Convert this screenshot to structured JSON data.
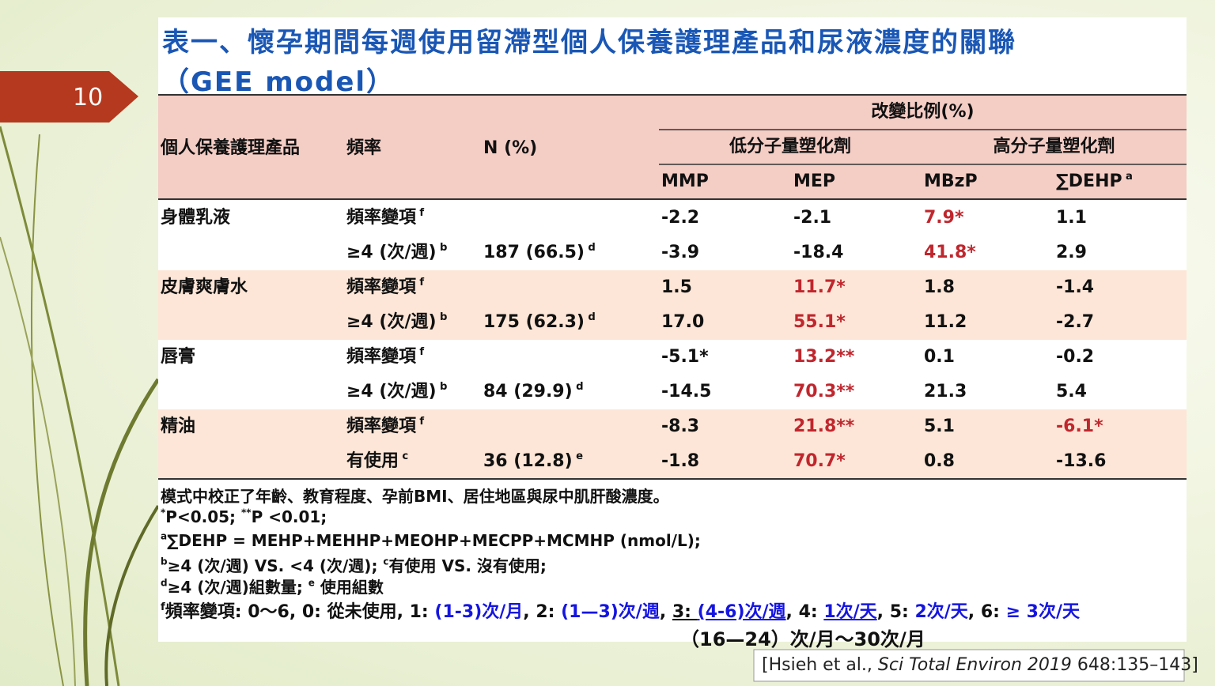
{
  "slide_number": "10",
  "title": [
    "表一、懷孕期間每週使用留滯型個人保養護理產品和尿液濃度的關聯",
    "（GEE model）"
  ],
  "table": {
    "header": {
      "product": "個人保養護理產品",
      "frequency": "頻率",
      "n": "N (%)",
      "change": "改變比例(%)",
      "low_mw": "低分子量塑化劑",
      "high_mw": "高分子量塑化劑",
      "metabolites": [
        {
          "text": "MMP"
        },
        {
          "text": "MEP"
        },
        {
          "text": "MBzP"
        },
        {
          "text": "∑DEHP",
          "sup": "a"
        }
      ]
    },
    "groups": [
      {
        "product": "身體乳液",
        "rows": [
          {
            "frequency": {
              "text": "頻率變項",
              "sup": "f"
            },
            "values": [
              {
                "text": "-2.2"
              },
              {
                "text": "-2.1"
              },
              {
                "text": "7.9*",
                "color": "#c0262d"
              },
              {
                "text": "1.1"
              }
            ]
          },
          {
            "frequency": {
              "text": "≥4 (次/週)",
              "sup": "b"
            },
            "n": {
              "text": "187 (66.5)",
              "sup": "d"
            },
            "values": [
              {
                "text": "-3.9"
              },
              {
                "text": "-18.4"
              },
              {
                "text": "41.8*",
                "color": "#c0262d"
              },
              {
                "text": "2.9"
              }
            ]
          }
        ]
      },
      {
        "product": "皮膚爽膚水",
        "rows": [
          {
            "frequency": {
              "text": "頻率變項",
              "sup": "f"
            },
            "values": [
              {
                "text": "1.5"
              },
              {
                "text": "11.7*",
                "color": "#c0262d"
              },
              {
                "text": "1.8"
              },
              {
                "text": "-1.4"
              }
            ]
          },
          {
            "frequency": {
              "text": "≥4 (次/週)",
              "sup": "b"
            },
            "n": {
              "text": "175 (62.3)",
              "sup": "d"
            },
            "values": [
              {
                "text": "17.0"
              },
              {
                "text": "55.1*",
                "color": "#c0262d"
              },
              {
                "text": "11.2"
              },
              {
                "text": "-2.7"
              }
            ]
          }
        ]
      },
      {
        "product": "唇膏",
        "rows": [
          {
            "frequency": {
              "text": "頻率變項",
              "sup": "f"
            },
            "values": [
              {
                "text": "-5.1*"
              },
              {
                "text": "13.2**",
                "color": "#c0262d"
              },
              {
                "text": "0.1"
              },
              {
                "text": "-0.2"
              }
            ]
          },
          {
            "frequency": {
              "text": "≥4 (次/週)",
              "sup": "b"
            },
            "n": {
              "text": "84 (29.9)",
              "sup": "d"
            },
            "values": [
              {
                "text": "-14.5"
              },
              {
                "text": "70.3**",
                "color": "#c0262d"
              },
              {
                "text": "21.3"
              },
              {
                "text": "5.4"
              }
            ]
          }
        ]
      },
      {
        "product": "精油",
        "rows": [
          {
            "frequency": {
              "text": "頻率變項",
              "sup": "f"
            },
            "values": [
              {
                "text": "-8.3"
              },
              {
                "text": "21.8**",
                "color": "#c0262d"
              },
              {
                "text": "5.1"
              },
              {
                "text": "-6.1*",
                "color": "#c0262d"
              }
            ]
          },
          {
            "frequency": {
              "text": "有使用",
              "sup": "c"
            },
            "n": {
              "text": "36 (12.8)",
              "sup": "e"
            },
            "values": [
              {
                "text": "-1.8"
              },
              {
                "text": "70.7*",
                "color": "#c0262d"
              },
              {
                "text": "0.8"
              },
              {
                "text": "-13.6"
              }
            ]
          }
        ]
      }
    ]
  },
  "footnotes": [
    [
      {
        "text": "模式中校正了年齡、教育程度、孕前BMI、居住地區與尿中肌肝酸濃度。"
      }
    ],
    [
      {
        "text": "*",
        "style": "sup"
      },
      {
        "text": "P<0.05; "
      },
      {
        "text": "**",
        "style": "sup"
      },
      {
        "text": "P <0.01;"
      }
    ],
    [
      {
        "text": "a",
        "style": "sup"
      },
      {
        "text": "∑DEHP = MEHP+MEHHP+MEOHP+MECPP+MCMHP (nmol/L);"
      }
    ],
    [
      {
        "text": "b",
        "style": "sup"
      },
      {
        "text": "≥4 (次/週) VS. <4 (次/週); "
      },
      {
        "text": "c",
        "style": "sup"
      },
      {
        "text": "有使用 VS. 沒有使用;"
      }
    ],
    [
      {
        "text": "d",
        "style": "sup"
      },
      {
        "text": "≥4 (次/週)組數量; "
      },
      {
        "text": "e",
        "style": "sup"
      },
      {
        "text": " 使用組數"
      }
    ],
    [
      {
        "text": "f",
        "style": "sup"
      },
      {
        "text": "頻率變項: 0～6,  0: 從未使用, 1: "
      },
      {
        "text": "(1-3)次/月",
        "style": "blue"
      },
      {
        "text": ", 2: "
      },
      {
        "text": "(1—3)次/週",
        "style": "blue"
      },
      {
        "text": ", "
      },
      {
        "text": "3: ",
        "style": "underline"
      },
      {
        "text": "(4-6)次/週",
        "style": "blue-underline"
      },
      {
        "text": ", 4: "
      },
      {
        "text": "1次/天",
        "style": "blue-underline"
      },
      {
        "text": ", 5: "
      },
      {
        "text": "2次/天",
        "style": "blue"
      },
      {
        "text": ", 6: "
      },
      {
        "text": "≥ 3次/天",
        "style": "blue"
      }
    ]
  ],
  "footnote_continuation": "（16—24）次/月～30次/月",
  "citation": [
    {
      "text": "[Hsieh et al., "
    },
    {
      "text": "Sci Total Environ 2019",
      "style": "italic"
    },
    {
      "text": " 648:135–143]"
    }
  ]
}
